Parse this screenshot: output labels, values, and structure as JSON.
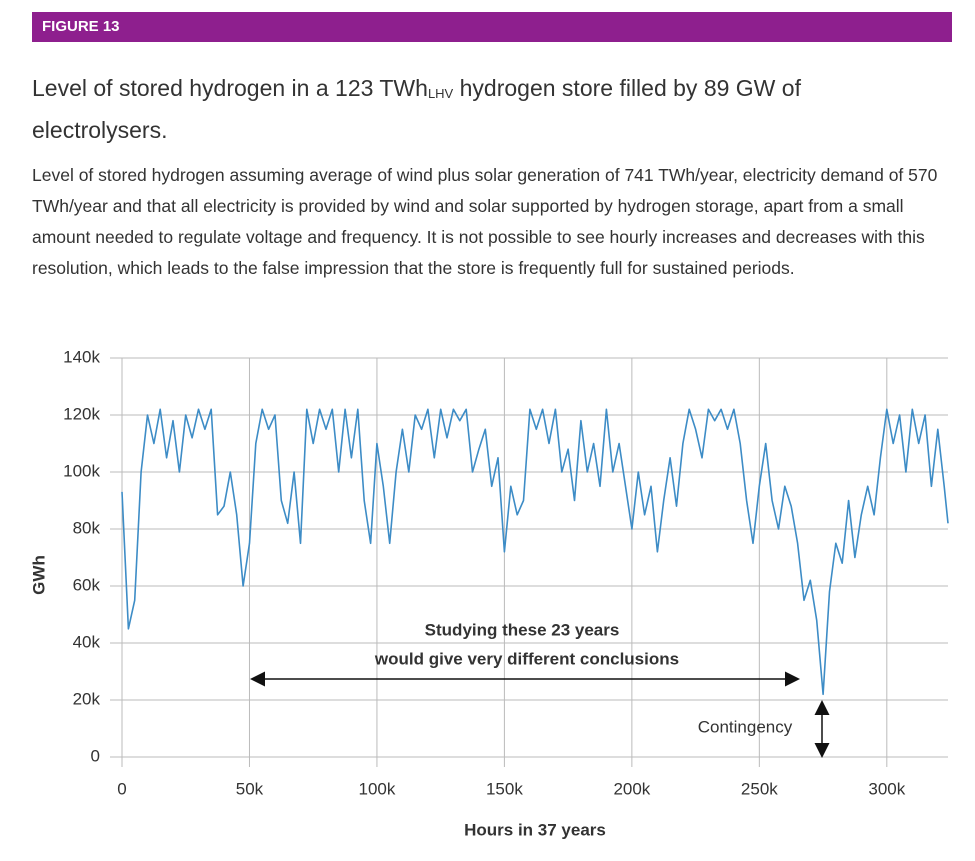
{
  "figure_label": "FIGURE 13",
  "title": {
    "before": "Level of stored hydrogen in a 123 TWh",
    "subscript": "LHV",
    "after": " hydrogen store filled by 89 GW of electrolysers."
  },
  "description": "Level of stored hydrogen assuming average of wind plus solar generation of 741 TWh/year, electricity demand of 570 TWh/year and that all electricity is provided by wind and solar supported by hydrogen storage, apart from a small amount needed to regulate voltage and frequency. It is not possible to see hourly increases and decreases with this resolution, which leads to the false impression that the store is frequently full for sustained periods.",
  "chart_data": {
    "type": "line",
    "xlabel": "Hours in 37 years",
    "ylabel": "GWh",
    "annotations": [
      "Studying these 23 years",
      "would give very different conclusions",
      "Contingency"
    ],
    "color": "#3d8cc6",
    "grid": true,
    "xlim": [
      0,
      324000
    ],
    "ylim": [
      0,
      140000
    ],
    "xticks": [
      0,
      {
        "value": 50000,
        "label": "50k"
      },
      {
        "value": 100000,
        "label": "100k"
      },
      {
        "value": 150000,
        "label": "150k"
      },
      {
        "value": 200000,
        "label": "200k"
      },
      {
        "value": 250000,
        "label": "250k"
      },
      {
        "value": 300000,
        "label": "300k"
      }
    ],
    "yticks": [
      0,
      {
        "value": 20000,
        "label": "20k"
      },
      {
        "value": 40000,
        "label": "40k"
      },
      {
        "value": 60000,
        "label": "60k"
      },
      {
        "value": 80000,
        "label": "80k"
      },
      {
        "value": 100000,
        "label": "100k"
      },
      {
        "value": 120000,
        "label": "120k"
      },
      {
        "value": 140000,
        "label": "140k"
      }
    ],
    "x": [
      0,
      2500,
      5000,
      7500,
      10000,
      12500,
      15000,
      17500,
      20000,
      22500,
      25000,
      27500,
      30000,
      32500,
      35000,
      37500,
      40000,
      42500,
      45000,
      47500,
      50000,
      52500,
      55000,
      57500,
      60000,
      62500,
      65000,
      67500,
      70000,
      72500,
      75000,
      77500,
      80000,
      82500,
      85000,
      87500,
      90000,
      92500,
      95000,
      97500,
      100000,
      102500,
      105000,
      107500,
      110000,
      112500,
      115000,
      117500,
      120000,
      122500,
      125000,
      127500,
      130000,
      132500,
      135000,
      137500,
      140000,
      142500,
      145000,
      147500,
      150000,
      152500,
      155000,
      157500,
      160000,
      162500,
      165000,
      167500,
      170000,
      172500,
      175000,
      177500,
      180000,
      182500,
      185000,
      187500,
      190000,
      192500,
      195000,
      197500,
      200000,
      202500,
      205000,
      207500,
      210000,
      212500,
      215000,
      217500,
      220000,
      222500,
      225000,
      227500,
      230000,
      232500,
      235000,
      237500,
      240000,
      242500,
      245000,
      247500,
      250000,
      252500,
      255000,
      257500,
      260000,
      262500,
      265000,
      267500,
      270000,
      272500,
      275000,
      277500,
      280000,
      282500,
      285000,
      287500,
      290000,
      292500,
      295000,
      297500,
      300000,
      302500,
      305000,
      307500,
      310000,
      312500,
      315000,
      317500,
      320000,
      322500,
      324000
    ],
    "values": [
      93000,
      45000,
      55000,
      100000,
      120000,
      110000,
      122000,
      105000,
      118000,
      100000,
      120000,
      112000,
      122000,
      115000,
      122000,
      85000,
      88000,
      100000,
      85000,
      60000,
      75000,
      110000,
      122000,
      115000,
      120000,
      90000,
      82000,
      100000,
      75000,
      122000,
      110000,
      122000,
      115000,
      122000,
      100000,
      122000,
      105000,
      122000,
      90000,
      75000,
      110000,
      95000,
      75000,
      100000,
      115000,
      100000,
      120000,
      115000,
      122000,
      105000,
      122000,
      112000,
      122000,
      118000,
      122000,
      100000,
      108000,
      115000,
      95000,
      105000,
      72000,
      95000,
      85000,
      90000,
      122000,
      115000,
      122000,
      110000,
      122000,
      100000,
      108000,
      90000,
      118000,
      100000,
      110000,
      95000,
      122000,
      100000,
      110000,
      95000,
      80000,
      100000,
      85000,
      95000,
      72000,
      90000,
      105000,
      88000,
      110000,
      122000,
      115000,
      105000,
      122000,
      118000,
      122000,
      115000,
      122000,
      110000,
      90000,
      75000,
      95000,
      110000,
      90000,
      80000,
      95000,
      88000,
      75000,
      55000,
      62000,
      48000,
      22000,
      58000,
      75000,
      68000,
      90000,
      70000,
      85000,
      95000,
      85000,
      105000,
      122000,
      110000,
      120000,
      100000,
      122000,
      110000,
      120000,
      95000,
      115000,
      95000,
      82000
    ]
  }
}
